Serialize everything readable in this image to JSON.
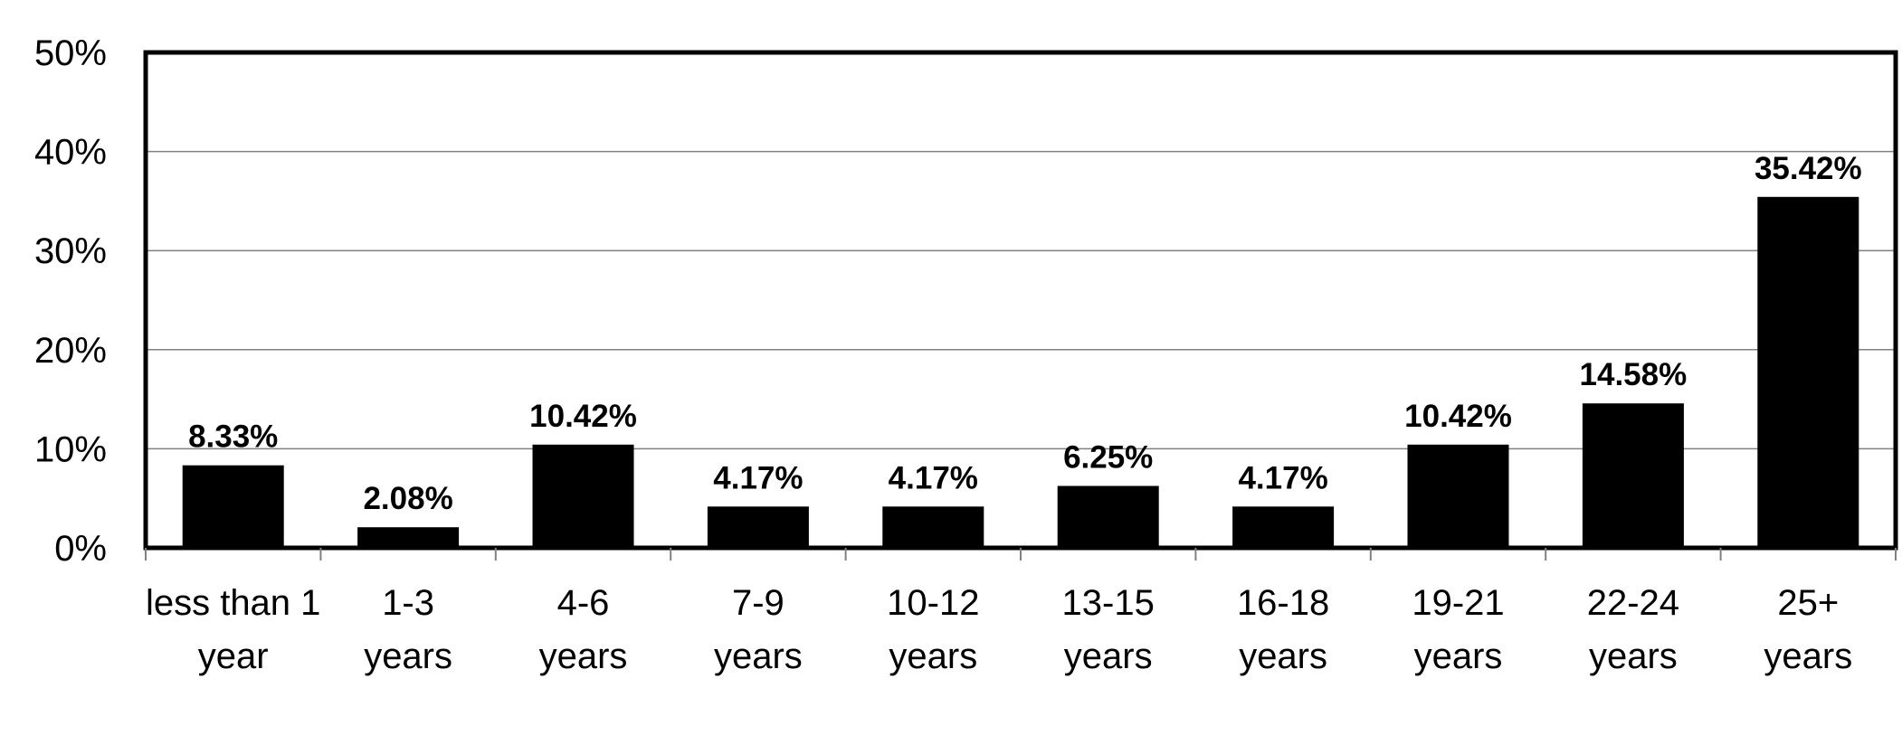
{
  "chart_data": {
    "type": "bar",
    "title": "",
    "xlabel": "",
    "ylabel": "",
    "ylim": [
      0,
      50
    ],
    "yticks": [
      0,
      10,
      20,
      30,
      40,
      50
    ],
    "ytick_labels": [
      "0%",
      "10%",
      "20%",
      "30%",
      "40%",
      "50%"
    ],
    "grid": true,
    "categories": [
      [
        "less than 1",
        "year"
      ],
      [
        "1-3",
        "years"
      ],
      [
        "4-6",
        "years"
      ],
      [
        "7-9",
        "years"
      ],
      [
        "10-12",
        "years"
      ],
      [
        "13-15",
        "years"
      ],
      [
        "16-18",
        "years"
      ],
      [
        "19-21",
        "years"
      ],
      [
        "22-24",
        "years"
      ],
      [
        "25+",
        "years"
      ]
    ],
    "values": [
      8.33,
      2.08,
      10.42,
      4.17,
      4.17,
      6.25,
      4.17,
      10.42,
      14.58,
      35.42
    ],
    "data_labels": [
      "8.33%",
      "2.08%",
      "10.42%",
      "4.17%",
      "4.17%",
      "6.25%",
      "4.17%",
      "10.42%",
      "14.58%",
      "35.42%"
    ],
    "colors": {
      "bar": "#000000",
      "grid": "#808080",
      "frame": "#000000",
      "background": "#ffffff"
    }
  }
}
